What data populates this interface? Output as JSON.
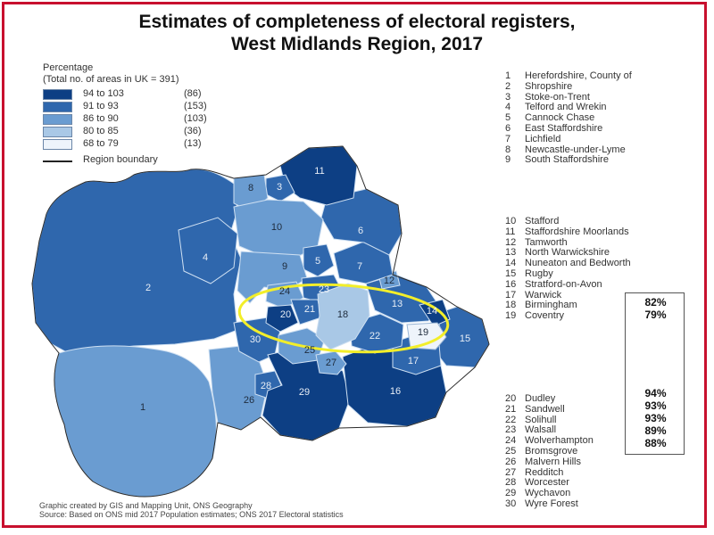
{
  "title_line1": "Estimates of completeness of electoral registers,",
  "title_line2": "West Midlands Region, 2017",
  "legend": {
    "title_line1": "Percentage",
    "title_line2": "(Total no. of areas in UK = 391)",
    "items": [
      {
        "range": "94 to 103",
        "count": "(86)",
        "color": "#0d3f84"
      },
      {
        "range": "91 to 93",
        "count": "(153)",
        "color": "#2f67ad"
      },
      {
        "range": "86 to 90",
        "count": "(103)",
        "color": "#6a9cd1"
      },
      {
        "range": "80 to 85",
        "count": "(36)",
        "color": "#a9c8e6"
      },
      {
        "range": "68 to 79",
        "count": "(13)",
        "color": "#eef4fb"
      }
    ],
    "boundary_label": "Region boundary"
  },
  "area_names_group1": [
    {
      "n": "1",
      "name": "Herefordshire, County of"
    },
    {
      "n": "2",
      "name": "Shropshire"
    },
    {
      "n": "3",
      "name": "Stoke-on-Trent"
    },
    {
      "n": "4",
      "name": "Telford and Wrekin"
    },
    {
      "n": "5",
      "name": "Cannock Chase"
    },
    {
      "n": "6",
      "name": "East Staffordshire"
    },
    {
      "n": "7",
      "name": "Lichfield"
    },
    {
      "n": "8",
      "name": "Newcastle-under-Lyme"
    },
    {
      "n": "9",
      "name": "South Staffordshire"
    }
  ],
  "area_names_group2": [
    {
      "n": "10",
      "name": "Stafford"
    },
    {
      "n": "11",
      "name": "Staffordshire Moorlands"
    },
    {
      "n": "12",
      "name": "Tamworth"
    },
    {
      "n": "13",
      "name": "North Warwickshire"
    },
    {
      "n": "14",
      "name": "Nuneaton and Bedworth"
    },
    {
      "n": "15",
      "name": "Rugby"
    },
    {
      "n": "16",
      "name": "Stratford-on-Avon"
    },
    {
      "n": "17",
      "name": "Warwick"
    },
    {
      "n": "18",
      "name": "Birmingham"
    },
    {
      "n": "19",
      "name": "Coventry"
    }
  ],
  "area_names_group3": [
    {
      "n": "20",
      "name": "Dudley"
    },
    {
      "n": "21",
      "name": "Sandwell"
    },
    {
      "n": "22",
      "name": "Solihull"
    },
    {
      "n": "23",
      "name": "Walsall"
    },
    {
      "n": "24",
      "name": "Wolverhampton"
    },
    {
      "n": "25",
      "name": "Bromsgrove"
    },
    {
      "n": "26",
      "name": "Malvern Hills"
    },
    {
      "n": "27",
      "name": "Redditch"
    },
    {
      "n": "28",
      "name": "Worcester"
    },
    {
      "n": "29",
      "name": "Wychavon"
    },
    {
      "n": "30",
      "name": "Wyre Forest"
    }
  ],
  "highlight_percentages": [
    {
      "area": "18",
      "value": "82%"
    },
    {
      "area": "19",
      "value": "79%"
    },
    {
      "area": "20",
      "value": "94%"
    },
    {
      "area": "21",
      "value": "93%"
    },
    {
      "area": "22",
      "value": "93%"
    },
    {
      "area": "23",
      "value": "89%"
    },
    {
      "area": "24",
      "value": "88%"
    }
  ],
  "footer_line1": "Graphic created by GIS and Mapping Unit, ONS Geography",
  "footer_line2": "Source: Based on ONS mid 2017 Population estimates; ONS 2017 Electoral statistics",
  "map_labels": [
    "1",
    "2",
    "3",
    "4",
    "5",
    "6",
    "7",
    "8",
    "9",
    "10",
    "11",
    "12",
    "13",
    "14",
    "15",
    "16",
    "17",
    "18",
    "19",
    "20",
    "21",
    "22",
    "23",
    "24",
    "25",
    "26",
    "27",
    "28",
    "29",
    "30"
  ],
  "highlight_color": "#f2ee2a"
}
